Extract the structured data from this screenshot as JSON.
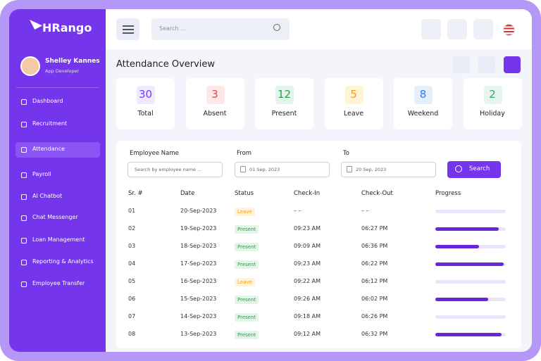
{
  "brand": "HRango",
  "user": {
    "name": "Shelley Kannes",
    "role": "App Developer"
  },
  "menu": [
    "Dashboard",
    "Recruitment",
    "Attendance",
    "Payroll",
    "AI Chatbot",
    "Chat Messenger",
    "Loan Management",
    "Reporting & Analytics",
    "Employee Transfer"
  ],
  "active_menu": 2,
  "search_placeholder": "Search ...",
  "page_title": "Attendance Overview",
  "stats": [
    {
      "value": 30,
      "label": "Total",
      "color": "#7c3aed",
      "bg": "#ede9fe"
    },
    {
      "value": 3,
      "label": "Absent",
      "color": "#e5484d",
      "bg": "#fde8e8"
    },
    {
      "value": 12,
      "label": "Present",
      "color": "#2e9e4f",
      "bg": "#e3f5e8"
    },
    {
      "value": 5,
      "label": "Leave",
      "color": "#f0a020",
      "bg": "#fff4d6"
    },
    {
      "value": 8,
      "label": "Weekend",
      "color": "#2f80ed",
      "bg": "#e3effd"
    },
    {
      "value": 2,
      "label": "Holiday",
      "color": "#3aa76d",
      "bg": "#e6f6ee"
    }
  ],
  "filters": {
    "employee_label": "Employee Name",
    "employee_placeholder": "Search by employee name ...",
    "from_label": "From",
    "from_value": "01 Sep, 2023",
    "to_label": "To",
    "to_value": "20 Sep, 2023",
    "button": "Search"
  },
  "table": {
    "headers": [
      "Sr. #",
      "Date",
      "Status",
      "Check-In",
      "Check-Out",
      "Progress"
    ],
    "rows": [
      {
        "no": "01",
        "date": "20-Sep-2023",
        "status": "Leave",
        "status_color": "#f0a020",
        "status_bg": "#fff4d6",
        "check_in": "– –",
        "check_out": "– –",
        "progress": 0
      },
      {
        "no": "02",
        "date": "19-Sep-2023",
        "status": "Present",
        "status_color": "#2e9e4f",
        "status_bg": "#e3f5e8",
        "check_in": "09:23 AM",
        "check_out": "06:27 PM",
        "progress": 90
      },
      {
        "no": "03",
        "date": "18-Sep-2023",
        "status": "Present",
        "status_color": "#2e9e4f",
        "status_bg": "#e3f5e8",
        "check_in": "09:09 AM",
        "check_out": "06:36 PM",
        "progress": 62
      },
      {
        "no": "04",
        "date": "17-Sep-2023",
        "status": "Present",
        "status_color": "#2e9e4f",
        "status_bg": "#e3f5e8",
        "check_in": "09:23 AM",
        "check_out": "06:22 PM",
        "progress": 97
      },
      {
        "no": "05",
        "date": "16-Sep-2023",
        "status": "Leave",
        "status_color": "#f0a020",
        "status_bg": "#fff4d6",
        "check_in": "09:22 AM",
        "check_out": "06:12 PM",
        "progress": 0
      },
      {
        "no": "06",
        "date": "15-Sep-2023",
        "status": "Present",
        "status_color": "#2e9e4f",
        "status_bg": "#e3f5e8",
        "check_in": "09:26 AM",
        "check_out": "06:02 PM",
        "progress": 75
      },
      {
        "no": "07",
        "date": "14-Sep-2023",
        "status": "Present",
        "status_color": "#2e9e4f",
        "status_bg": "#e3f5e8",
        "check_in": "09:18 AM",
        "check_out": "06:26 PM",
        "progress": 0
      },
      {
        "no": "08",
        "date": "13-Sep-2023",
        "status": "Present",
        "status_color": "#2e9e4f",
        "status_bg": "#e3f5e8",
        "check_in": "09:12 AM",
        "check_out": "06:32 PM",
        "progress": 94
      }
    ]
  }
}
